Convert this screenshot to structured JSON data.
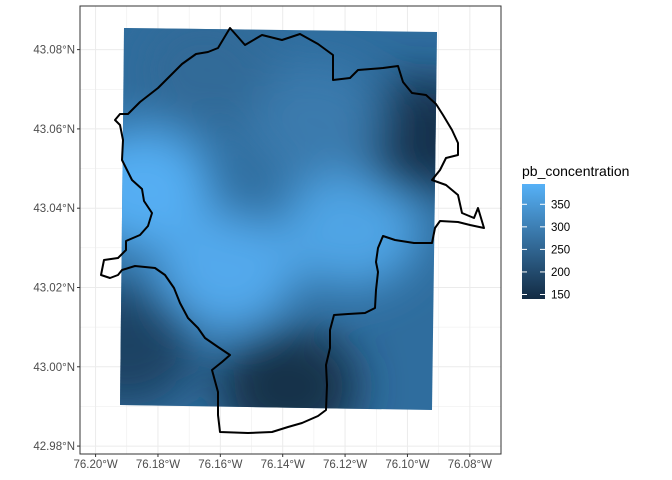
{
  "chart_data": {
    "type": "heatmap",
    "title": "",
    "xlabel": "",
    "ylabel": "",
    "x_ticks": [
      "76.20°W",
      "76.18°W",
      "76.16°W",
      "76.14°W",
      "76.12°W",
      "76.10°W",
      "76.08°W"
    ],
    "y_ticks": [
      "42.98°N",
      "43.00°N",
      "43.02°N",
      "43.04°N",
      "43.06°N",
      "43.08°N"
    ],
    "xlim": [
      -76.205,
      -76.07
    ],
    "ylim": [
      42.978,
      43.091
    ],
    "grid": true,
    "legend": {
      "title": "pb_concentration",
      "placement": "right",
      "labels": [
        "150",
        "200",
        "250",
        "300",
        "350"
      ],
      "values": [
        150,
        200,
        250,
        300,
        350
      ],
      "range": [
        140,
        395
      ],
      "low_color": "#132B43",
      "high_color": "#56B1F7"
    },
    "hotspots_description_values": [
      {
        "lon": -76.185,
        "lat": 43.045,
        "pb_concentration": 390
      },
      {
        "lon": -76.158,
        "lat": 43.024,
        "pb_concentration": 380
      },
      {
        "lon": -76.118,
        "lat": 43.035,
        "pb_concentration": 370
      },
      {
        "lon": -76.138,
        "lat": 42.995,
        "pb_concentration": 150
      },
      {
        "lon": -76.095,
        "lat": 43.058,
        "pb_concentration": 155
      },
      {
        "lon": -76.19,
        "lat": 43.005,
        "pb_concentration": 185
      },
      {
        "lon": -76.13,
        "lat": 43.062,
        "pb_concentration": 290
      },
      {
        "lon": -76.165,
        "lat": 43.075,
        "pb_concentration": 260
      }
    ]
  },
  "colors": {
    "panel_border": "#333333",
    "grid_line": "#ebebeb",
    "boundary": "#000000"
  }
}
